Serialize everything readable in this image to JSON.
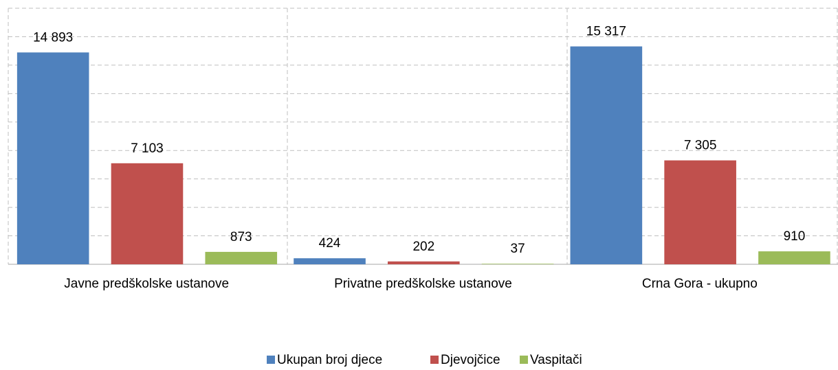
{
  "chart_data": {
    "type": "bar",
    "categories": [
      "Javne predškolske ustanove",
      "Privatne predškolske ustanove",
      "Crna Gora - ukupno"
    ],
    "series": [
      {
        "name": "Ukupan broj djece",
        "color": "#4f81bd",
        "values": [
          14893,
          424,
          15317
        ],
        "value_labels": [
          "14 893",
          "424",
          "15 317"
        ]
      },
      {
        "name": "Djevojčice",
        "color": "#c0504d",
        "values": [
          7103,
          202,
          7305
        ],
        "value_labels": [
          "7 103",
          "202",
          "7 305"
        ]
      },
      {
        "name": "Vaspitači",
        "color": "#9bbb59",
        "values": [
          873,
          37,
          910
        ],
        "value_labels": [
          "873",
          "37",
          "910"
        ]
      }
    ],
    "ylim": [
      0,
      18000
    ],
    "yticks": [
      0,
      2000,
      4000,
      6000,
      8000,
      10000,
      12000,
      14000,
      16000,
      18000
    ],
    "grid": true,
    "legend": "bottom"
  }
}
